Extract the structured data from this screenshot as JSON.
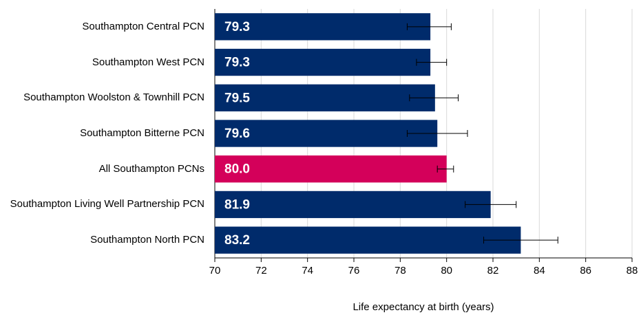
{
  "chart_data": {
    "type": "bar",
    "orientation": "horizontal",
    "xlabel": "Life expectancy at birth (years)",
    "categories": [
      "Southampton Central PCN",
      "Southampton West PCN",
      "Southampton Woolston & Townhill PCN",
      "Southampton Bitterne PCN",
      "All Southampton PCNs",
      "Southampton Living Well Partnership PCN",
      "Southampton North PCN"
    ],
    "series": [
      {
        "values": [
          79.3,
          79.3,
          79.5,
          79.6,
          80.0,
          81.9,
          83.2
        ],
        "value_labels": [
          "79.3",
          "79.3",
          "79.5",
          "79.6",
          "80.0",
          "81.9",
          "83.2"
        ],
        "ci_low": [
          78.3,
          78.7,
          78.4,
          78.3,
          79.6,
          80.8,
          81.6
        ],
        "ci_high": [
          80.2,
          80.0,
          80.5,
          80.9,
          80.3,
          83.0,
          84.8
        ],
        "colors": [
          "#002b6b",
          "#002b6b",
          "#002b6b",
          "#002b6b",
          "#d4005a",
          "#002b6b",
          "#002b6b"
        ]
      }
    ],
    "xlim": [
      70,
      88
    ],
    "xticks": [
      70,
      72,
      74,
      76,
      78,
      80,
      82,
      84,
      86,
      88
    ],
    "grid": true
  }
}
